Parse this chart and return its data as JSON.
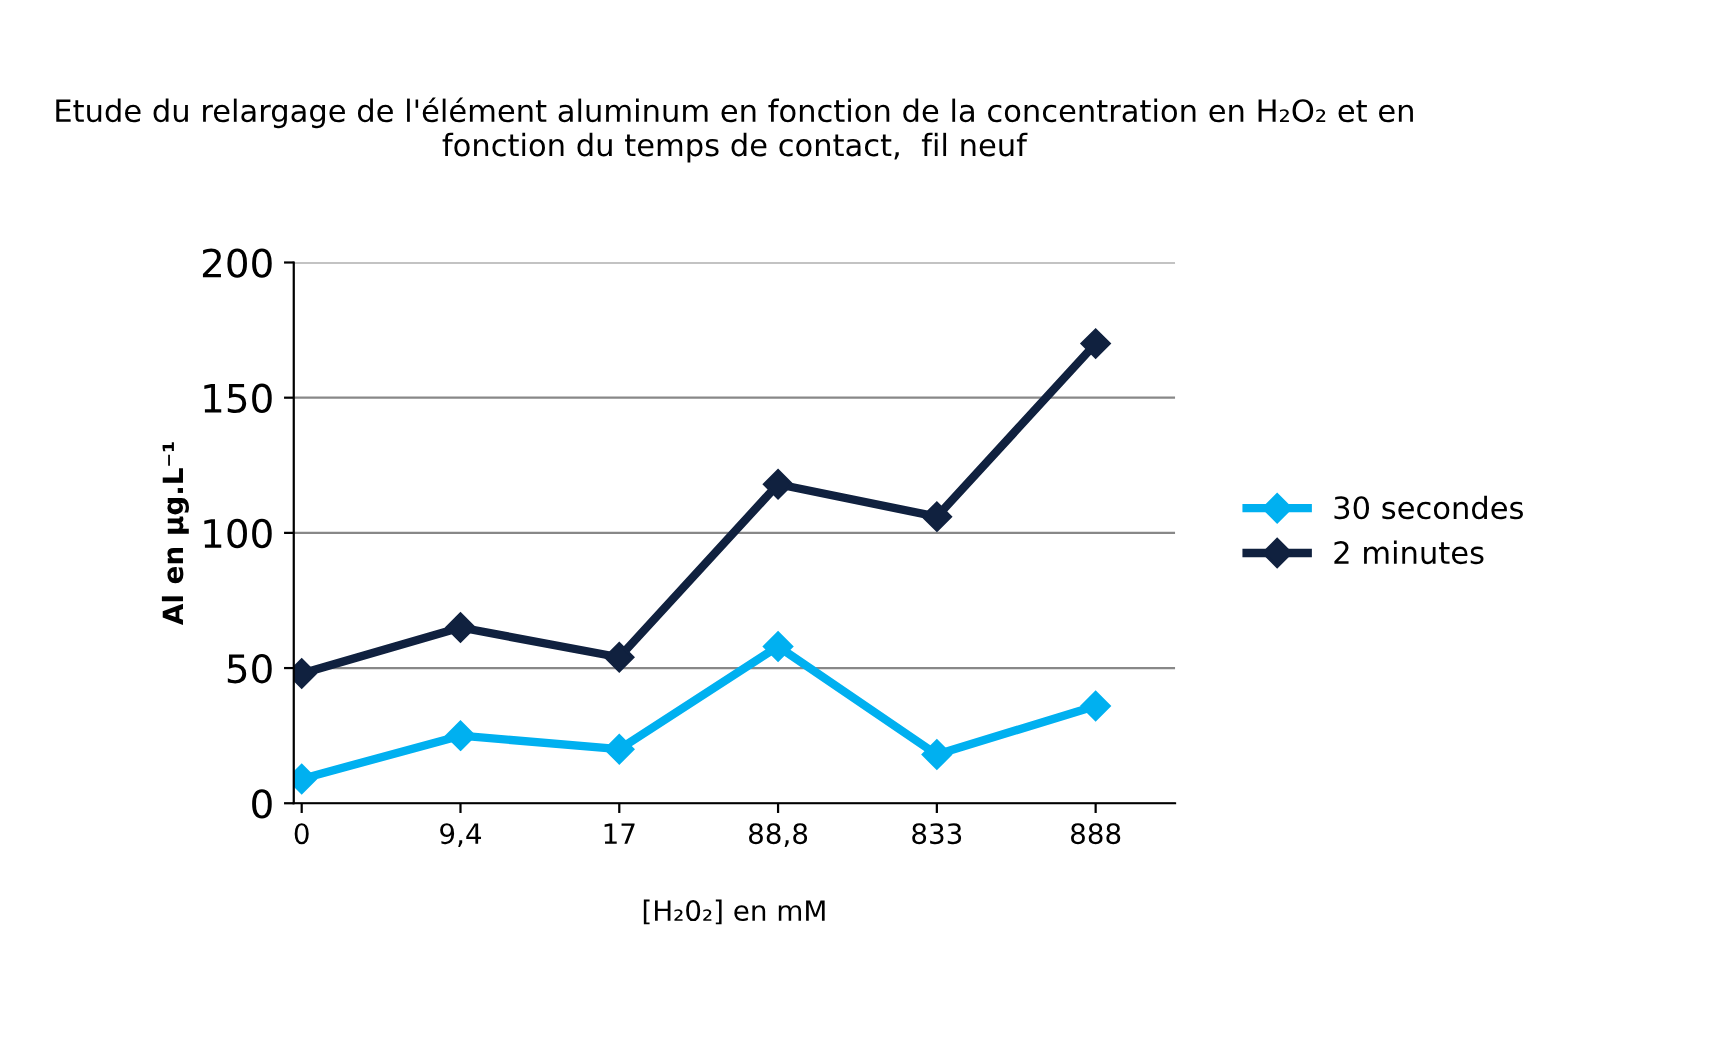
{
  "chart_data": {
    "type": "line",
    "title": "Etude du relargage de l'élément aluminum en fonction de la concentration en H₂O₂ et en fonction du temps de contact,  fil neuf",
    "xlabel": "[H₂0₂] en mM",
    "ylabel": "Al en µg.L⁻¹",
    "categories": [
      "0",
      "9,4",
      "17",
      "88,8",
      "833",
      "888"
    ],
    "series": [
      {
        "name": "30 secondes",
        "color": "#00b0f0",
        "values": [
          9,
          25,
          20,
          58,
          18,
          36
        ]
      },
      {
        "name": "2 minutes",
        "color": "#10213f",
        "values": [
          48,
          65,
          54,
          118,
          106,
          170
        ]
      }
    ],
    "ylim": [
      0,
      200
    ],
    "yticks": [
      0,
      50,
      100,
      150,
      200
    ],
    "grid": "y",
    "legend": "right",
    "marker": "diamond",
    "line_style": "solid"
  }
}
